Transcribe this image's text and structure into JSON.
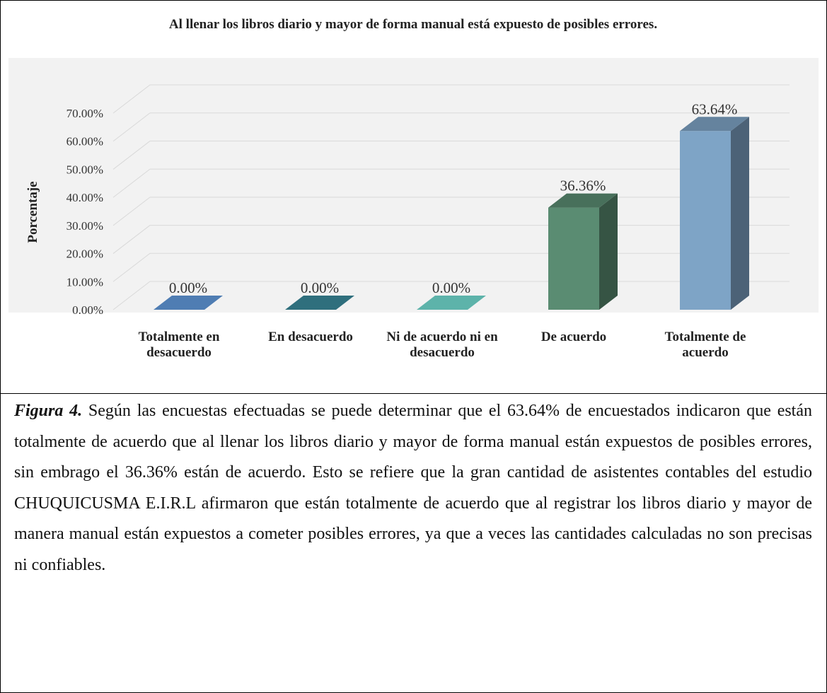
{
  "chart_data": {
    "type": "bar3d",
    "title": "Al llenar los libros diario y mayor de forma manual está expuesto de posibles errores.",
    "y_label": "Porcentaje",
    "categories": [
      "Totalmente en desacuerdo",
      "En desacuerdo",
      "Ni de acuerdo ni en desacuerdo",
      "De acuerdo",
      "Totalmente de acuerdo"
    ],
    "values": [
      0,
      0,
      0,
      36.36,
      63.64
    ],
    "value_labels": [
      "0.00%",
      "0.00%",
      "0.00%",
      "36.36%",
      "63.64%"
    ],
    "colors": [
      "#4f7db3",
      "#2f6f7d",
      "#5db3aa",
      "#5a8c72",
      "#7ea4c6"
    ],
    "ylim": [
      0,
      70
    ],
    "yticks": [
      {
        "value": 0,
        "label": "0.00%"
      },
      {
        "value": 10,
        "label": "10.00%"
      },
      {
        "value": 20,
        "label": "20.00%"
      },
      {
        "value": 30,
        "label": "30.00%"
      },
      {
        "value": 40,
        "label": "40.00%"
      },
      {
        "value": 50,
        "label": "50.00%"
      },
      {
        "value": 60,
        "label": "60.00%"
      },
      {
        "value": 70,
        "label": "70.00%"
      }
    ],
    "grid": true
  },
  "caption": {
    "label": "Figura 4.",
    "text": "Según las encuestas efectuadas se puede determinar que el 63.64% de encuestados indicaron que están totalmente de acuerdo que al llenar los libros diario y mayor de forma manual están expuestos de posibles errores, sin embrago el 36.36% están de acuerdo. Esto se refiere que la gran cantidad de asistentes contables del estudio CHUQUICUSMA E.I.R.L afirmaron que están totalmente de acuerdo que al registrar los libros diario y mayor de manera manual están expuestos a cometer posibles errores, ya que a veces las cantidades calculadas no son precisas ni confiables."
  }
}
